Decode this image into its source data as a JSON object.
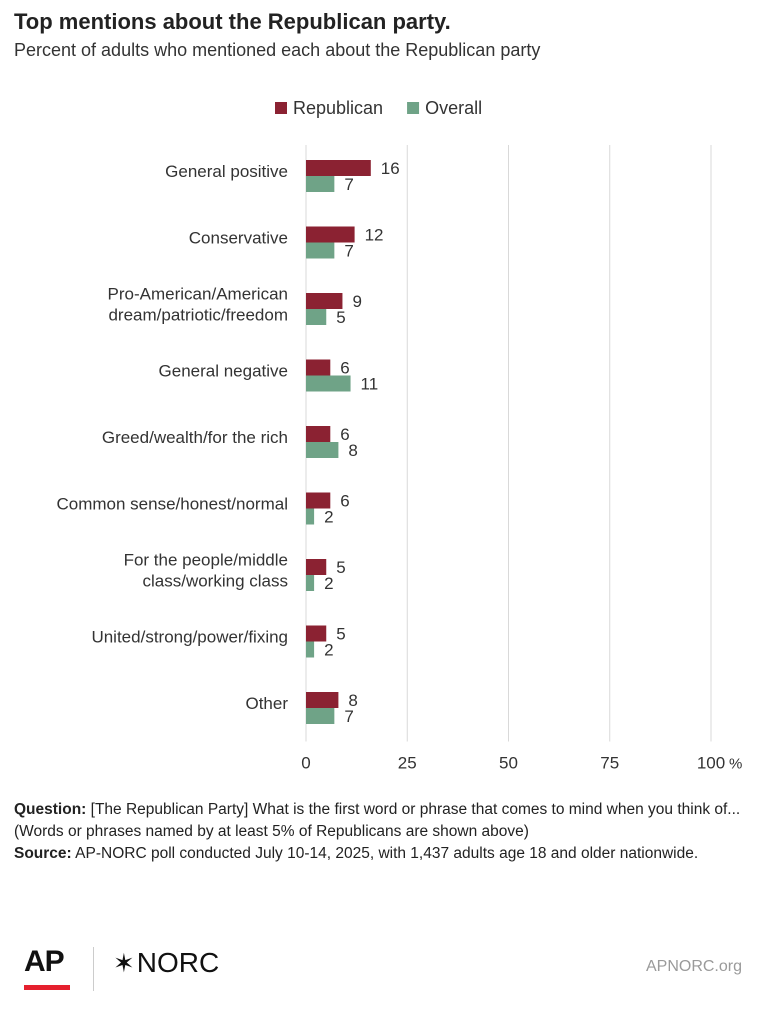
{
  "header": {
    "title": "Top mentions about the Republican party.",
    "subtitle": "Percent of adults who mentioned each about the Republican party"
  },
  "chart_data": {
    "type": "bar",
    "orientation": "horizontal",
    "categories": [
      [
        "General positive"
      ],
      [
        "Conservative"
      ],
      [
        "Pro-American/American",
        "dream/patriotic/freedom"
      ],
      [
        "General negative"
      ],
      [
        "Greed/wealth/for the rich"
      ],
      [
        "Common sense/honest/normal"
      ],
      [
        "For the people/middle",
        "class/working class"
      ],
      [
        "United/strong/power/fixing"
      ],
      [
        "Other"
      ]
    ],
    "series": [
      {
        "name": "Republican",
        "color": "#8b2232",
        "values": [
          16,
          12,
          9,
          6,
          6,
          6,
          5,
          5,
          8
        ]
      },
      {
        "name": "Overall",
        "color": "#6fa387",
        "values": [
          7,
          7,
          5,
          11,
          8,
          2,
          2,
          2,
          7
        ]
      }
    ],
    "xlim": [
      0,
      100
    ],
    "x_ticks": [
      "0",
      "25",
      "50",
      "75",
      "100"
    ],
    "x_tick_values": [
      0,
      25,
      50,
      75,
      100
    ],
    "x_unit": "%",
    "legend_position": "top",
    "grid": true
  },
  "notes": {
    "question_label": "Question:",
    "question_text": " [The Republican Party] What is the first word or phrase that comes to mind when you think of...",
    "question_note": "(Words or phrases named by at least 5% of Republicans are shown above)",
    "source_label": "Source:",
    "source_text": " AP-NORC poll conducted July 10-14, 2025, with 1,437 adults age 18 and older nationwide."
  },
  "footer": {
    "ap_logo": "AP",
    "norc_logo": "NORC",
    "norc_star": "✶",
    "site": "APNORC.org"
  }
}
